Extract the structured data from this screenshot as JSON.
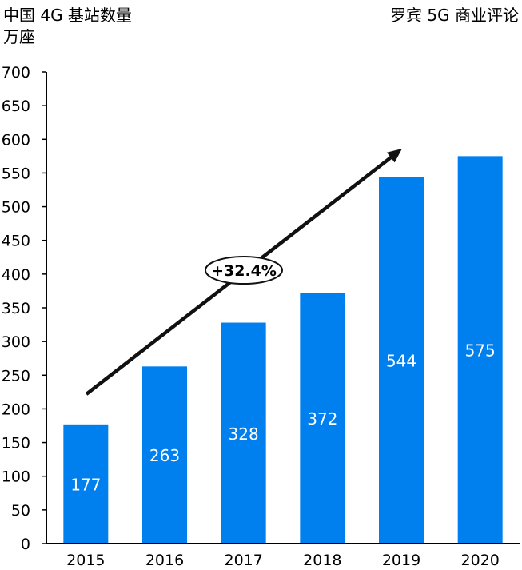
{
  "header": {
    "title": "中国 4G 基站数量",
    "unit": "万座",
    "source": "罗宾 5G 商业评论"
  },
  "chart_data": {
    "type": "bar",
    "categories": [
      "2015",
      "2016",
      "2017",
      "2018",
      "2019",
      "2020"
    ],
    "values": [
      177,
      263,
      328,
      372,
      544,
      575
    ],
    "data_labels": [
      "177",
      "263",
      "328",
      "372",
      "544",
      "575"
    ],
    "ylim": [
      0,
      700
    ],
    "yticks": [
      0,
      50,
      100,
      150,
      200,
      250,
      300,
      350,
      400,
      450,
      500,
      550,
      600,
      650,
      700
    ],
    "grid": false,
    "legend": "none",
    "bar_color": "#0080ee",
    "annotation": {
      "text": "+32.4%",
      "kind": "trend-arrow"
    }
  }
}
